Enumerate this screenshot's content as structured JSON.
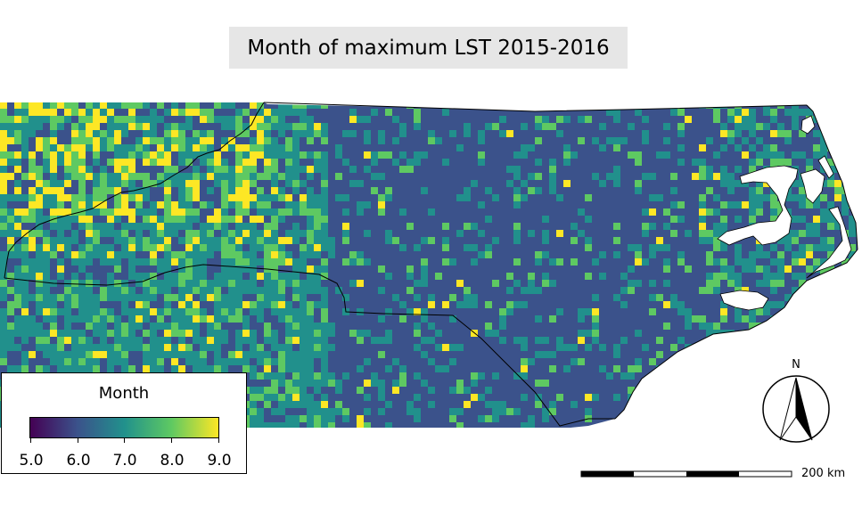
{
  "title": "Month of maximum LST 2015-2016",
  "legend": {
    "title": "Month",
    "ticks": [
      "5.0",
      "6.0",
      "7.0",
      "8.0",
      "9.0"
    ],
    "range": [
      5,
      9
    ],
    "colormap": [
      "#440154",
      "#3b528b",
      "#21918c",
      "#5ec962",
      "#fde725"
    ]
  },
  "scalebar": {
    "label": "200 km"
  },
  "compass": {
    "label": "N"
  },
  "colors": {
    "m5": "#440154",
    "m6": "#3b528b",
    "m7": "#21908c",
    "m8": "#5ec962",
    "m9": "#fde725"
  }
}
